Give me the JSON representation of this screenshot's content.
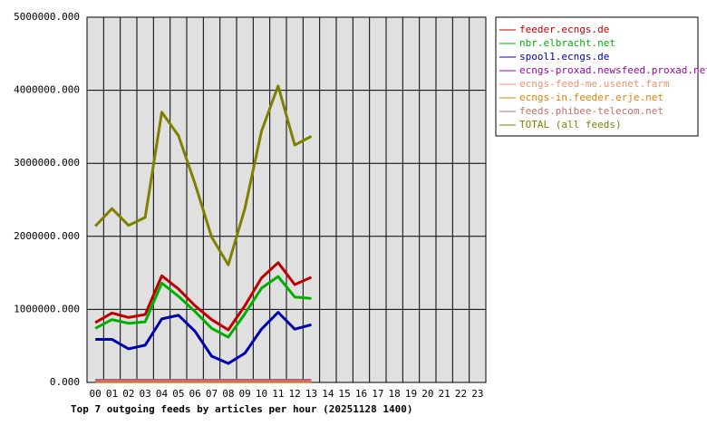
{
  "chart_data": {
    "type": "line",
    "title": "Top 7 outgoing feeds by articles per hour (20251128 1400)",
    "categories": [
      "00",
      "01",
      "02",
      "03",
      "04",
      "05",
      "06",
      "07",
      "08",
      "09",
      "10",
      "11",
      "12",
      "13",
      "14",
      "15",
      "16",
      "17",
      "18",
      "19",
      "20",
      "21",
      "22",
      "23"
    ],
    "ylim": [
      0,
      5000000
    ],
    "yticks": [
      {
        "value": 0,
        "label": "0.000"
      },
      {
        "value": 1000000,
        "label": "1000000.000"
      },
      {
        "value": 2000000,
        "label": "2000000.000"
      },
      {
        "value": 3000000,
        "label": "3000000.000"
      },
      {
        "value": 4000000,
        "label": "4000000.000"
      },
      {
        "value": 5000000,
        "label": "5000000.000"
      }
    ],
    "grid": true,
    "legend": "right",
    "series": [
      {
        "name": "feeder.ecngs.de",
        "color": "#c00000",
        "values": [
          820000,
          950000,
          890000,
          930000,
          1460000,
          1280000,
          1050000,
          860000,
          720000,
          1050000,
          1430000,
          1640000,
          1340000,
          1440000,
          null,
          null,
          null,
          null,
          null,
          null,
          null,
          null,
          null,
          null
        ]
      },
      {
        "name": "nbr.elbracht.net",
        "color": "#00b000",
        "values": [
          740000,
          860000,
          810000,
          830000,
          1360000,
          1180000,
          970000,
          740000,
          620000,
          940000,
          1290000,
          1450000,
          1170000,
          1150000,
          null,
          null,
          null,
          null,
          null,
          null,
          null,
          null,
          null,
          null
        ]
      },
      {
        "name": "spool1.ecngs.de",
        "color": "#0000b0",
        "values": [
          590000,
          590000,
          460000,
          510000,
          870000,
          920000,
          700000,
          360000,
          260000,
          400000,
          730000,
          960000,
          730000,
          790000,
          null,
          null,
          null,
          null,
          null,
          null,
          null,
          null,
          null,
          null
        ]
      },
      {
        "name": "ecngs-proxad.newsfeed.proxad.net",
        "color": "#a000a0",
        "values": [
          30000,
          30000,
          30000,
          30000,
          30000,
          30000,
          30000,
          30000,
          30000,
          30000,
          30000,
          30000,
          30000,
          30000,
          null,
          null,
          null,
          null,
          null,
          null,
          null,
          null,
          null,
          null
        ]
      },
      {
        "name": "ecngs-feed-me.usenet.farm",
        "color": "#f09070",
        "values": [
          20000,
          20000,
          20000,
          20000,
          20000,
          20000,
          20000,
          20000,
          20000,
          20000,
          20000,
          20000,
          20000,
          20000,
          null,
          null,
          null,
          null,
          null,
          null,
          null,
          null,
          null,
          null
        ]
      },
      {
        "name": "ecngs-in.feeder.erje.net",
        "color": "#e08000",
        "values": [
          10000,
          10000,
          10000,
          10000,
          10000,
          10000,
          10000,
          10000,
          10000,
          10000,
          10000,
          10000,
          10000,
          10000,
          null,
          null,
          null,
          null,
          null,
          null,
          null,
          null,
          null,
          null
        ]
      },
      {
        "name": "feeds.phibee-telecom.net",
        "color": "#c07070",
        "values": [
          25000,
          25000,
          25000,
          25000,
          25000,
          25000,
          25000,
          25000,
          25000,
          25000,
          25000,
          25000,
          25000,
          25000,
          null,
          null,
          null,
          null,
          null,
          null,
          null,
          null,
          null,
          null
        ]
      },
      {
        "name": "TOTAL (all feeds)",
        "color": "#808000",
        "values": [
          2140000,
          2380000,
          2150000,
          2260000,
          3700000,
          3380000,
          2720000,
          1990000,
          1610000,
          2380000,
          3440000,
          4060000,
          3250000,
          3370000,
          null,
          null,
          null,
          null,
          null,
          null,
          null,
          null,
          null,
          null
        ]
      }
    ]
  }
}
